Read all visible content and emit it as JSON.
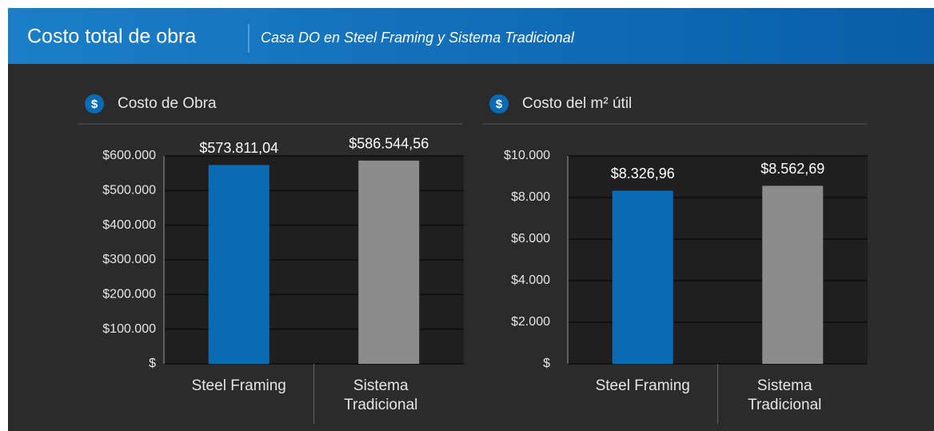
{
  "header": {
    "title": "Costo total de obra",
    "subtitle": "Casa DO en Steel Framing y Sistema Tradicional"
  },
  "chart_data": [
    {
      "type": "bar",
      "title": "Costo de Obra",
      "icon": "$",
      "categories": [
        "Steel Framing",
        "Sistema Tradicional"
      ],
      "series": [
        {
          "name": null,
          "colors": [
            "#0a6bb5",
            "#8c8c8c"
          ],
          "values": [
            573811.04,
            586544.56
          ],
          "value_labels": [
            "$573.811,04",
            "$586.544,56"
          ]
        }
      ],
      "ylim": [
        0,
        600000
      ],
      "yticks": [
        {
          "value": 0,
          "label": "$"
        },
        {
          "value": 100000,
          "label": "$100.000"
        },
        {
          "value": 200000,
          "label": "$200.000"
        },
        {
          "value": 300000,
          "label": "$300.000"
        },
        {
          "value": 400000,
          "label": "$400.000"
        },
        {
          "value": 500000,
          "label": "$500.000"
        },
        {
          "value": 600000,
          "label": "$600.000"
        }
      ],
      "grid": true
    },
    {
      "type": "bar",
      "title": "Costo del m² útil",
      "icon": "$",
      "categories": [
        "Steel Framing",
        "Sistema Tradicional"
      ],
      "series": [
        {
          "name": null,
          "colors": [
            "#0a6bb5",
            "#8c8c8c"
          ],
          "values": [
            8326.96,
            8562.69
          ],
          "value_labels": [
            "$8.326,96",
            "$8.562,69"
          ]
        }
      ],
      "ylim": [
        0,
        10000
      ],
      "yticks": [
        {
          "value": 0,
          "label": "$"
        },
        {
          "value": 2000,
          "label": "$2.000"
        },
        {
          "value": 4000,
          "label": "$4.000"
        },
        {
          "value": 6000,
          "label": "$6.000"
        },
        {
          "value": 8000,
          "label": "$8.000"
        },
        {
          "value": 10000,
          "label": "$10.000"
        }
      ],
      "grid": true
    }
  ]
}
